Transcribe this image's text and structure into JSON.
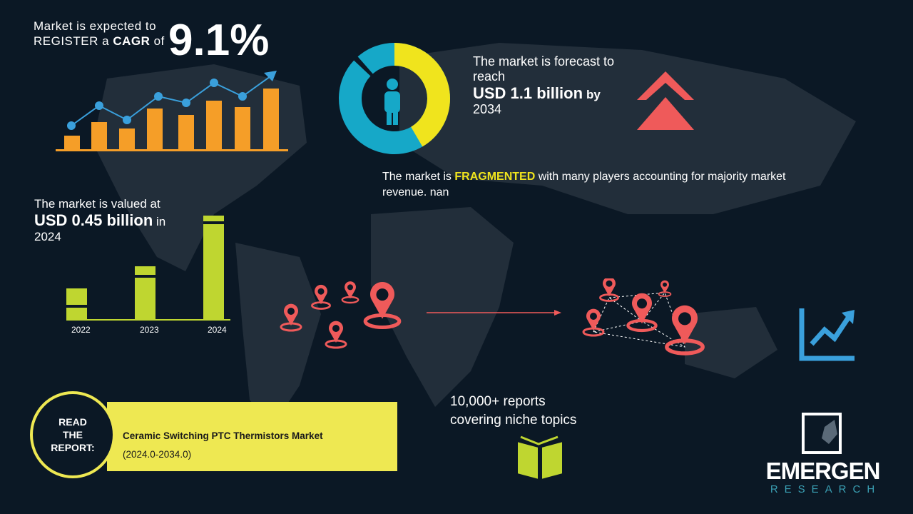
{
  "cagr": {
    "line1": "Market is expected to",
    "line2_pre": "REGISTER a ",
    "line2_bold": "CAGR",
    "line2_post": " of",
    "value": "9.1%"
  },
  "forecast": {
    "line1": "The market is forecast to",
    "line2": "reach",
    "value": "USD 1.1 billion",
    "by": "by",
    "year": "2034"
  },
  "fragmented": {
    "pre": "The market is ",
    "highlight": "FRAGMENTED",
    "post": " with many players accounting for majority market",
    "line2": "revenue. nan"
  },
  "valued": {
    "line1": "The market is valued at",
    "value": "USD 0.45 billion",
    "in": "in",
    "year": "2024"
  },
  "year_bars": {
    "labels": [
      "2022",
      "2023",
      "2024"
    ],
    "relative_heights": [
      0.3,
      0.51,
      1.0
    ]
  },
  "reports": {
    "line1": "10,000+ reports",
    "line2": "covering niche topics"
  },
  "read_report": {
    "circle": [
      "READ",
      "THE",
      "REPORT:"
    ],
    "title": "Ceramic Switching PTC Thermistors Market",
    "period": "(2024.0-2034.0)"
  },
  "logo": {
    "name": "EMERGEN",
    "sub": "RESEARCH"
  },
  "colors": {
    "background": "#0b1825",
    "orange": "#f59e28",
    "blue": "#3aa0dc",
    "yellow": "#f0e41d",
    "teal": "#16a8c8",
    "red": "#ef5a5a",
    "green": "#bfd630",
    "banner": "#eee852"
  },
  "icons": [
    "growth-chart-icon",
    "donut-person-icon",
    "double-chevron-up-icon",
    "location-pin-icon",
    "network-pins-icon",
    "trend-up-icon",
    "open-book-icon",
    "emergen-logo-icon"
  ]
}
